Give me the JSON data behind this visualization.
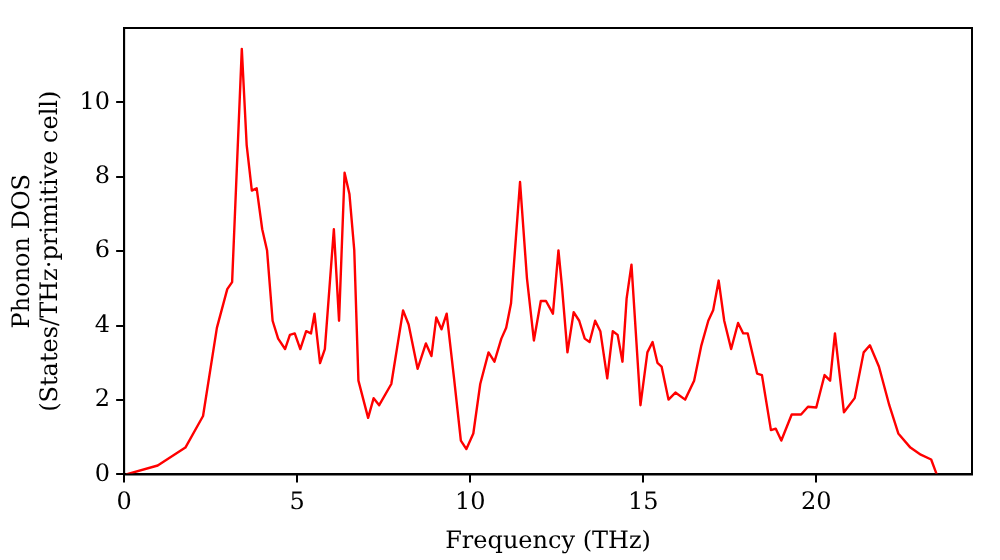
{
  "chart_data": {
    "type": "line",
    "xlabel": "Frequency (THz)",
    "ylabel": "Phonon DOS\n(States/THz·primitive cell)",
    "x": [
      0.06,
      0.97,
      1.77,
      2.28,
      2.68,
      2.98,
      3.12,
      3.4,
      3.54,
      3.69,
      3.83,
      3.99,
      4.13,
      4.29,
      4.45,
      4.65,
      4.79,
      4.93,
      5.09,
      5.26,
      5.4,
      5.5,
      5.66,
      5.8,
      6.06,
      6.21,
      6.37,
      6.51,
      6.65,
      6.77,
      7.05,
      7.21,
      7.37,
      7.72,
      8.06,
      8.22,
      8.48,
      8.72,
      8.88,
      9.02,
      9.17,
      9.32,
      9.53,
      9.73,
      9.89,
      10.09,
      10.29,
      10.53,
      10.7,
      10.9,
      11.04,
      11.18,
      11.44,
      11.64,
      11.84,
      12.04,
      12.19,
      12.39,
      12.55,
      12.65,
      12.81,
      12.99,
      13.15,
      13.31,
      13.45,
      13.61,
      13.76,
      13.96,
      14.12,
      14.26,
      14.4,
      14.52,
      14.66,
      14.92,
      15.12,
      15.27,
      15.41,
      15.53,
      15.73,
      15.93,
      16.21,
      16.47,
      16.68,
      16.88,
      17.02,
      17.18,
      17.34,
      17.54,
      17.74,
      17.89,
      18.02,
      18.29,
      18.43,
      18.69,
      18.83,
      18.99,
      19.29,
      19.56,
      19.76,
      20.0,
      20.24,
      20.4,
      20.54,
      20.8,
      21.11,
      21.37,
      21.55,
      21.81,
      22.11,
      22.37,
      22.72,
      23.02,
      23.32,
      23.48
    ],
    "series": [
      {
        "color": "#ff0000",
        "values": [
          0,
          0.24,
          0.72,
          1.57,
          3.94,
          4.98,
          5.17,
          11.44,
          8.86,
          7.63,
          7.69,
          6.59,
          6.02,
          4.13,
          3.65,
          3.37,
          3.75,
          3.79,
          3.37,
          3.85,
          3.79,
          4.32,
          2.99,
          3.37,
          6.59,
          4.13,
          8.11,
          7.54,
          6.02,
          2.52,
          1.52,
          2.05,
          1.86,
          2.43,
          4.41,
          4.03,
          2.84,
          3.52,
          3.18,
          4.22,
          3.9,
          4.32,
          2.61,
          0.91,
          0.68,
          1.1,
          2.43,
          3.28,
          3.03,
          3.65,
          3.94,
          4.6,
          7.86,
          5.27,
          3.6,
          4.66,
          4.66,
          4.32,
          6.02,
          5.07,
          3.28,
          4.36,
          4.13,
          3.65,
          3.56,
          4.13,
          3.85,
          2.58,
          3.85,
          3.75,
          3.03,
          4.73,
          5.64,
          1.86,
          3.28,
          3.56,
          3,
          2.9,
          2.01,
          2.2,
          2.01,
          2.52,
          3.47,
          4.13,
          4.41,
          5.21,
          4.13,
          3.37,
          4.07,
          3.79,
          3.79,
          2.71,
          2.67,
          1.19,
          1.23,
          0.91,
          1.61,
          1.61,
          1.82,
          1.8,
          2.67,
          2.52,
          3.79,
          1.67,
          2.05,
          3.28,
          3.47,
          2.9,
          1.86,
          1.1,
          0.72,
          0.53,
          0.4,
          0
        ]
      }
    ],
    "xlim": [
      0,
      24.5
    ],
    "xticks": [
      0,
      5,
      10,
      15,
      20
    ],
    "ylim": [
      0,
      12
    ],
    "yticks": [
      0,
      2,
      4,
      6,
      8,
      10
    ],
    "grid": false,
    "legend": false,
    "marker": "none",
    "line_style": "solid"
  }
}
